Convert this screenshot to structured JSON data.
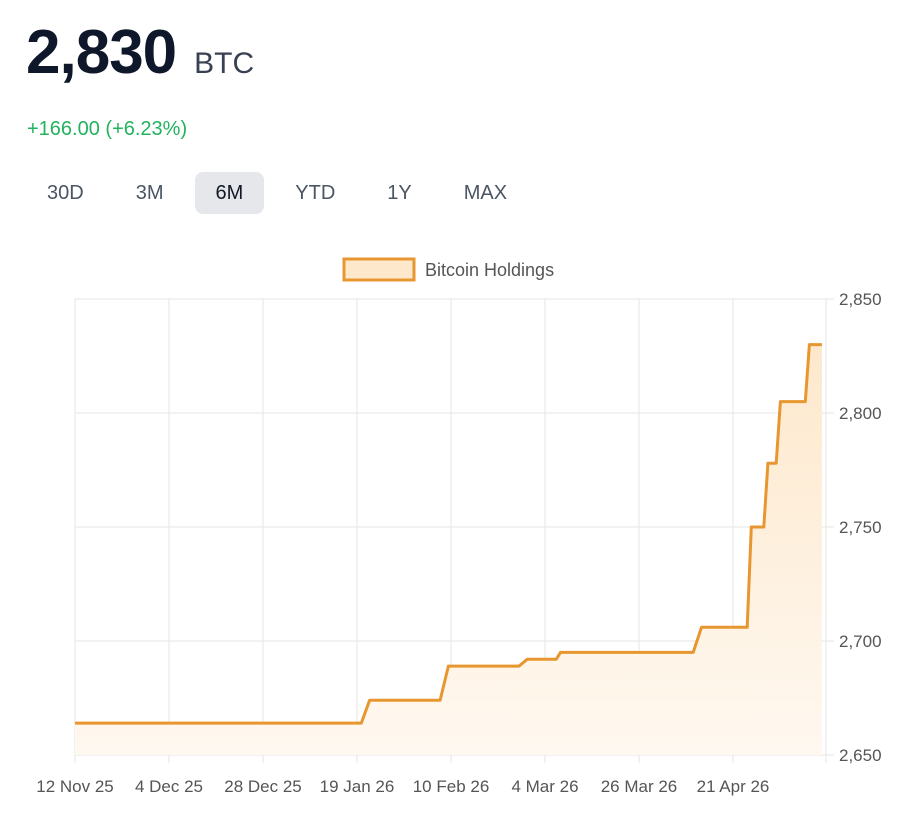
{
  "header": {
    "value": "2,830",
    "unit": "BTC",
    "change": "+166.00 (+6.23%)"
  },
  "ranges": [
    {
      "label": "30D",
      "active": false
    },
    {
      "label": "3M",
      "active": false
    },
    {
      "label": "6M",
      "active": true
    },
    {
      "label": "YTD",
      "active": false
    },
    {
      "label": "1Y",
      "active": false
    },
    {
      "label": "MAX",
      "active": false
    }
  ],
  "colors": {
    "line": "#e8962f",
    "fill_top": "#fde8cc",
    "fill_bottom": "#fff8f0",
    "grid": "#e5e5e5",
    "positive": "#22b35e"
  },
  "chart_data": {
    "type": "area",
    "legend": {
      "label": "Bitcoin Holdings",
      "position": "top-center"
    },
    "grid": true,
    "x_tick_labels": [
      "12 Nov 25",
      "4 Dec 25",
      "28 Dec 25",
      "19 Jan 26",
      "10 Feb 26",
      "4 Mar 26",
      "26 Mar 26",
      "21 Apr 26"
    ],
    "y_ticks": [
      "2,650",
      "2,700",
      "2,750",
      "2,800",
      "2,850"
    ],
    "ylim": [
      2650,
      2850
    ],
    "xlim": [
      "2025-11-12",
      "2026-05-12"
    ],
    "series": [
      {
        "name": "Bitcoin Holdings",
        "points": [
          {
            "date": "2025-11-12",
            "value": 2664
          },
          {
            "date": "2026-01-20",
            "value": 2664
          },
          {
            "date": "2026-01-22",
            "value": 2674
          },
          {
            "date": "2026-02-08",
            "value": 2674
          },
          {
            "date": "2026-02-10",
            "value": 2689
          },
          {
            "date": "2026-02-27",
            "value": 2689
          },
          {
            "date": "2026-03-01",
            "value": 2692
          },
          {
            "date": "2026-03-08",
            "value": 2692
          },
          {
            "date": "2026-03-09",
            "value": 2695
          },
          {
            "date": "2026-04-10",
            "value": 2695
          },
          {
            "date": "2026-04-12",
            "value": 2706
          },
          {
            "date": "2026-04-23",
            "value": 2706
          },
          {
            "date": "2026-04-24",
            "value": 2750
          },
          {
            "date": "2026-04-27",
            "value": 2750
          },
          {
            "date": "2026-04-28",
            "value": 2778
          },
          {
            "date": "2026-04-30",
            "value": 2778
          },
          {
            "date": "2026-05-01",
            "value": 2805
          },
          {
            "date": "2026-05-07",
            "value": 2805
          },
          {
            "date": "2026-05-08",
            "value": 2830
          },
          {
            "date": "2026-05-11",
            "value": 2830
          }
        ]
      }
    ]
  }
}
